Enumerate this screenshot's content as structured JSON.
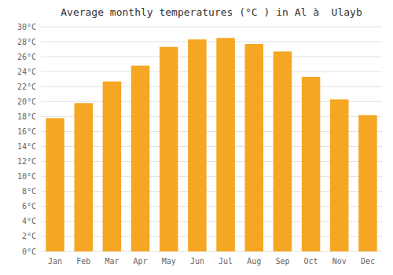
{
  "chart_data": {
    "type": "bar",
    "title": "Average monthly temperatures (°C ) in Al à  Ulayb",
    "categories": [
      "Jan",
      "Feb",
      "Mar",
      "Apr",
      "May",
      "Jun",
      "Jul",
      "Aug",
      "Sep",
      "Oct",
      "Nov",
      "Dec"
    ],
    "values": [
      17.8,
      19.8,
      22.7,
      24.8,
      27.3,
      28.3,
      28.5,
      27.7,
      26.7,
      23.3,
      20.3,
      18.2
    ],
    "color": "#F5A623",
    "ylim": [
      0,
      30
    ],
    "yticks": [
      {
        "value": 0,
        "label": "0°C"
      },
      {
        "value": 2,
        "label": "2°C"
      },
      {
        "value": 4,
        "label": "4°C"
      },
      {
        "value": 6,
        "label": "6°C"
      },
      {
        "value": 8,
        "label": "8°C"
      },
      {
        "value": 10,
        "label": "10°C"
      },
      {
        "value": 12,
        "label": "12°C"
      },
      {
        "value": 14,
        "label": "14°C"
      },
      {
        "value": 16,
        "label": "16°C"
      },
      {
        "value": 18,
        "label": "18°C"
      },
      {
        "value": 20,
        "label": "20°C"
      },
      {
        "value": 22,
        "label": "22°C"
      },
      {
        "value": 24,
        "label": "24°C"
      },
      {
        "value": 26,
        "label": "26°C"
      },
      {
        "value": 28,
        "label": "28°C"
      },
      {
        "value": 30,
        "label": "30°C"
      }
    ],
    "grid": true
  }
}
